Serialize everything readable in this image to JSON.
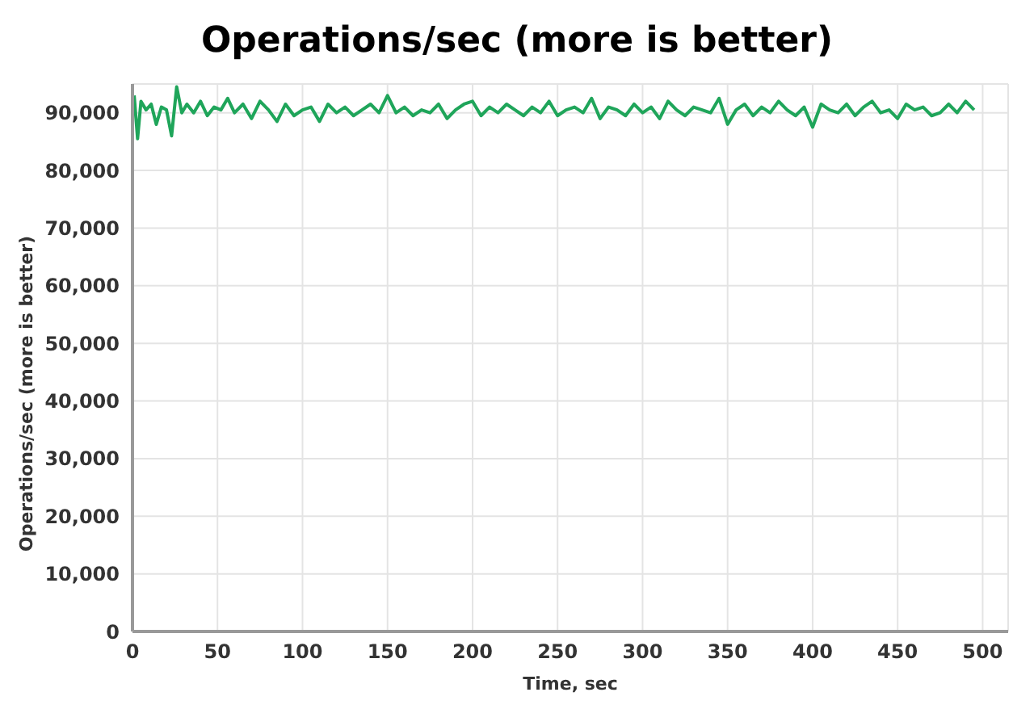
{
  "chart_data": {
    "type": "line",
    "title": "Operations/sec (more is better)",
    "xlabel": "Time, sec",
    "ylabel": "Operations/sec (more is better)",
    "x": [
      1,
      3,
      5,
      8,
      11,
      14,
      17,
      20,
      23,
      26,
      29,
      32,
      36,
      40,
      44,
      48,
      52,
      56,
      60,
      65,
      70,
      75,
      80,
      85,
      90,
      95,
      100,
      105,
      110,
      115,
      120,
      125,
      130,
      135,
      140,
      145,
      150,
      155,
      160,
      165,
      170,
      175,
      180,
      185,
      190,
      195,
      200,
      205,
      210,
      215,
      220,
      225,
      230,
      235,
      240,
      245,
      250,
      255,
      260,
      265,
      270,
      275,
      280,
      285,
      290,
      295,
      300,
      305,
      310,
      315,
      320,
      325,
      330,
      335,
      340,
      345,
      350,
      355,
      360,
      365,
      370,
      375,
      380,
      385,
      390,
      395,
      400,
      405,
      410,
      415,
      420,
      425,
      430,
      435,
      440,
      445,
      450,
      455,
      460,
      465,
      470,
      475,
      480,
      485,
      490,
      495
    ],
    "series": [
      {
        "color": "#1fa55a",
        "values": [
          93000,
          85500,
          92000,
          90500,
          91500,
          88000,
          91000,
          90500,
          86000,
          94500,
          90000,
          91500,
          90000,
          92000,
          89500,
          91000,
          90500,
          92500,
          90000,
          91500,
          89000,
          92000,
          90500,
          88500,
          91500,
          89500,
          90500,
          91000,
          88500,
          91500,
          90000,
          91000,
          89500,
          90500,
          91500,
          90000,
          93000,
          90000,
          91000,
          89500,
          90500,
          90000,
          91500,
          89000,
          90500,
          91500,
          92000,
          89500,
          91000,
          90000,
          91500,
          90500,
          89500,
          91000,
          90000,
          92000,
          89500,
          90500,
          91000,
          90000,
          92500,
          89000,
          91000,
          90500,
          89500,
          91500,
          90000,
          91000,
          89000,
          92000,
          90500,
          89500,
          91000,
          90500,
          90000,
          92500,
          88000,
          90500,
          91500,
          89500,
          91000,
          90000,
          92000,
          90500,
          89500,
          91000,
          87500,
          91500,
          90500,
          90000,
          91500,
          89500,
          91000,
          92000,
          90000,
          90500,
          89000,
          91500,
          90500,
          91000,
          89500,
          90000,
          91500,
          90000,
          92000,
          90500
        ]
      }
    ],
    "xlim": [
      0,
      515
    ],
    "xticks": [
      0,
      50,
      100,
      150,
      200,
      250,
      300,
      350,
      400,
      450,
      500
    ],
    "ylim": [
      0,
      95000
    ],
    "yticks": [
      0,
      {
        "value": 10000,
        "label": "10,000"
      },
      {
        "value": 20000,
        "label": "20,000"
      },
      {
        "value": 30000,
        "label": "30,000"
      },
      {
        "value": 40000,
        "label": "40,000"
      },
      {
        "value": 50000,
        "label": "50,000"
      },
      {
        "value": 60000,
        "label": "60,000"
      },
      {
        "value": 70000,
        "label": "70,000"
      },
      {
        "value": 80000,
        "label": "80,000"
      },
      {
        "value": 90000,
        "label": "90,000"
      }
    ],
    "grid": true,
    "marker": "none",
    "line_style": "solid"
  }
}
